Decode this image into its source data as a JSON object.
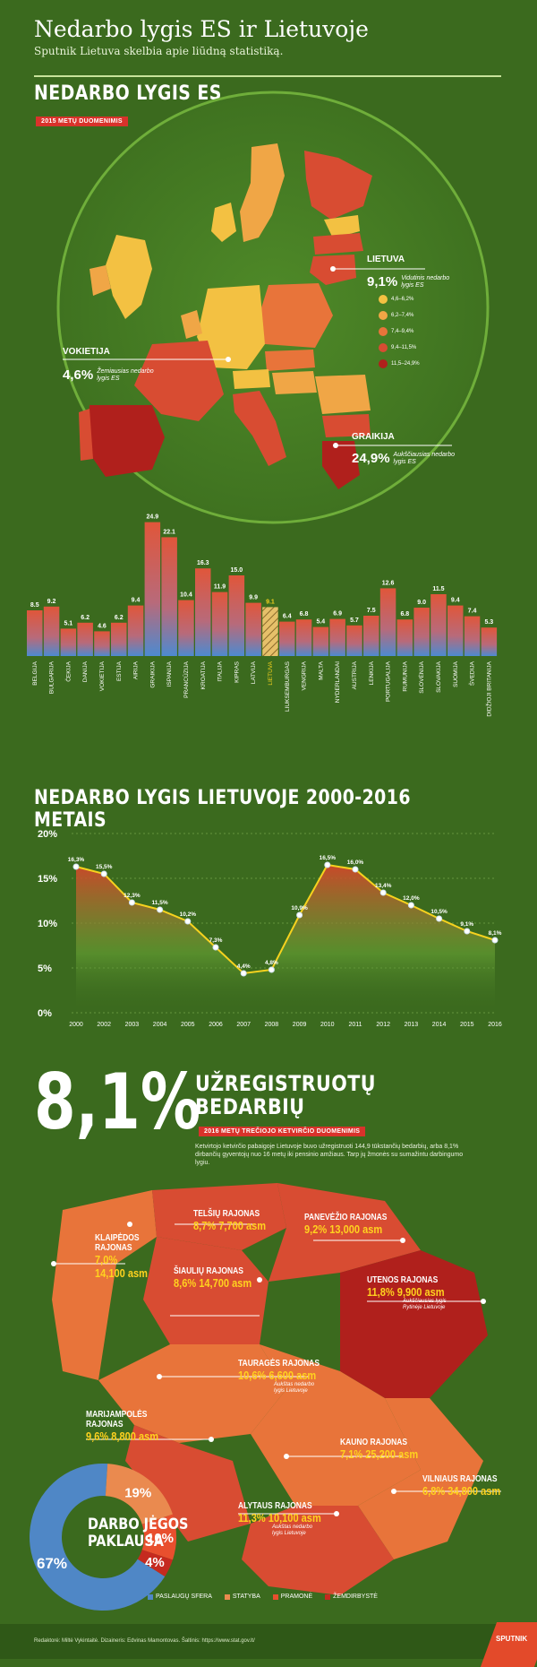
{
  "header": {
    "title": "Nedarbo lygis ES ir Lietuvoje",
    "subtitle": "Sputnik Lietuva skelbia apie liūdną statistiką."
  },
  "eu_section": {
    "title": "NEDARBO LYGIS ES",
    "tag": "2015 METŲ DUOMENIMIS",
    "callouts": {
      "lithuania": {
        "name": "LIETUVA",
        "value": "9,1%",
        "desc": "Vidutinis nedarbo lygis ES"
      },
      "germany": {
        "name": "VOKIETIJA",
        "value": "4,6%",
        "desc": "Žemiausias nedarbo lygis ES"
      },
      "greece": {
        "name": "GRAIKIJA",
        "value": "24,9%",
        "desc": "Aukščiausias nedarbo lygis ES"
      }
    },
    "legend": [
      {
        "label": "4,6–6,2%",
        "color": "#f3c142"
      },
      {
        "label": "6,2–7,4%",
        "color": "#f0a646"
      },
      {
        "label": "7,4–9,4%",
        "color": "#e8743a"
      },
      {
        "label": "9,4–11,5%",
        "color": "#d84c32"
      },
      {
        "label": "11,5–24,9%",
        "color": "#b0201c"
      }
    ]
  },
  "chart_data": [
    {
      "type": "bar",
      "title": "NEDARBO LYGIS ES",
      "categories": [
        "BELGIJA",
        "BULGARIJA",
        "ČEKIJA",
        "DANIJA",
        "VOKIETIJA",
        "ESTIJA",
        "AIRIJA",
        "GRAIKIJA",
        "ISPANIJA",
        "PRANCŪZIJA",
        "KROATIJA",
        "ITALIJA",
        "KIPRAS",
        "LATVIJA",
        "LIETUVA",
        "LIUKSEMBURGAS",
        "VENGRIJA",
        "MALTA",
        "NYDERLANDAI",
        "AUSTRIJA",
        "LENKIJA",
        "PORTUGALIJA",
        "RUMUNIJA",
        "SLOVĖNIJA",
        "SLOVAKIJA",
        "SUOMIJA",
        "ŠVEDIJA",
        "DIDŽIOJI BRITANIJA"
      ],
      "values": [
        8.5,
        9.2,
        5.1,
        6.2,
        4.6,
        6.2,
        9.4,
        24.9,
        22.1,
        10.4,
        16.3,
        11.9,
        15.0,
        9.9,
        9.1,
        6.4,
        6.8,
        5.4,
        6.9,
        5.7,
        7.5,
        12.6,
        6.8,
        9.0,
        11.5,
        9.4,
        7.4,
        5.3
      ],
      "labels": [
        "8.5",
        "9.2",
        "5.1",
        "6.2",
        "4.6",
        "6.2",
        "9.4",
        "24.9",
        "22.1",
        "10.4",
        "16.3",
        "11.9",
        "15.0",
        "9.9",
        "9.1",
        "6.4",
        "6.8",
        "5.4",
        "6.9",
        "5.7",
        "7.5",
        "12.6",
        "6.8",
        "9.0",
        "11.5",
        "9.4",
        "7.4",
        "5.3"
      ],
      "highlight": "LIETUVA",
      "ylim": [
        0,
        25
      ]
    },
    {
      "type": "line",
      "title": "NEDARBO LYGIS LIETUVOJE 2000-2016 METAIS",
      "x": [
        "2000",
        "2002",
        "2003",
        "2004",
        "2005",
        "2006",
        "2007",
        "2008",
        "2009",
        "2010",
        "2011",
        "2012",
        "2013",
        "2014",
        "2015",
        "2016"
      ],
      "y": [
        16.3,
        15.5,
        12.3,
        11.5,
        10.2,
        7.3,
        4.4,
        4.8,
        10.9,
        16.5,
        16.0,
        13.4,
        12.0,
        10.5,
        9.1,
        8.1
      ],
      "labels": [
        "16,3%",
        "15,5%",
        "12,3%",
        "11,5%",
        "10,2%",
        "7,3%",
        "4,4%",
        "4,8%",
        "10,9%",
        "16,5%",
        "16,0%",
        "13,4%",
        "12,0%",
        "10,5%",
        "9,1%",
        "8,1%"
      ],
      "yticks": [
        "0%",
        "5%",
        "10%",
        "15%",
        "20%"
      ],
      "ylim": [
        0,
        20
      ],
      "line_color": "#f6d21e"
    },
    {
      "type": "pie",
      "title": "DARBO JĖGOS PAKLAUSA",
      "slices": [
        {
          "label": "PASLAUGŲ SFERA",
          "value": 67,
          "text": "67%",
          "color": "#4f87c6"
        },
        {
          "label": "STATYBA",
          "value": 19,
          "text": "19%",
          "color": "#ea8a4f"
        },
        {
          "label": "PRAMONĖ",
          "value": 10,
          "text": "10%",
          "color": "#e84f2e"
        },
        {
          "label": "ŽEMDIRBYSTĖ",
          "value": 4,
          "text": "4%",
          "color": "#c52a1f"
        }
      ]
    }
  ],
  "lt_section": {
    "big_value": "8,1%",
    "heading_line1": "UŽREGISTRUOTŲ",
    "heading_line2": "BEDARBIŲ",
    "tag": "2016 METŲ TREČIOJO KETVIRČIO DUOMENIMIS",
    "paragraph": "Ketvirtojo ketvirčio pabaigoje Lietuvoje buvo užregistruoti 144,9 tūkstančių bedarbių, arba 8,1% dirbančių gyventojų nuo 16 metų iki pensinio amžiaus. Tarp jų žmonės su sumažintu darbingumo lygiu."
  },
  "municipalities": [
    {
      "key": "telsiu",
      "name1": "TELŠIŲ RAJONAS",
      "name2": "",
      "value": "8,7% 7,700 asm",
      "note": ""
    },
    {
      "key": "klaipedos",
      "name1": "KLAIPĖDOS",
      "name2": "RAJONAS",
      "value": "7,0%",
      "value2": "14,100 asm",
      "note": ""
    },
    {
      "key": "siauliu",
      "name1": "ŠIAULIŲ RAJONAS",
      "name2": "",
      "value": "8,6% 14,700 asm",
      "note": ""
    },
    {
      "key": "panevezio",
      "name1": "PANEVĖŽIO RAJONAS",
      "name2": "",
      "value": "9,2% 13,000 asm",
      "note": ""
    },
    {
      "key": "utenos",
      "name1": "UTENOS RAJONAS",
      "name2": "",
      "value": "11,8% 9,900 asm",
      "note": "Aukščiausias lygis Rytinėje Lietuvoje"
    },
    {
      "key": "taurages",
      "name1": "TAURAGĖS RAJONAS",
      "name2": "",
      "value": "10,6% 6,600 asm",
      "note": "Aukštas nedarbo lygis Lietuvoje"
    },
    {
      "key": "marijampoles",
      "name1": "MARIJAMPOLĖS",
      "name2": "RAJONAS",
      "value": "9,6% 8,800 asm",
      "note": ""
    },
    {
      "key": "kauno",
      "name1": "KAUNO RAJONAS",
      "name2": "",
      "value": "7,1% 25,200 asm",
      "note": ""
    },
    {
      "key": "vilniaus",
      "name1": "VILNIAUS RAJONAS",
      "name2": "",
      "value": "6,8% 34,800 asm",
      "note": ""
    },
    {
      "key": "alytaus",
      "name1": "ALYTAUS RAJONAS",
      "name2": "",
      "value": "11,3% 10,100 asm",
      "note": "Aukštas nedarbo lygis Lietuvoje"
    }
  ],
  "footer": {
    "credits": "Redaktorė: Miltė Vykintaitė.   Dizaineris: Edvinas Mamontovas.   Šaltinis: https://www.stat.gov.lt/",
    "logo": "SPUTNIK"
  },
  "colors": {
    "bg_green": "#3b6a1e",
    "accent_red": "#d9322b",
    "highlight_yellow": "#f6d21e"
  }
}
